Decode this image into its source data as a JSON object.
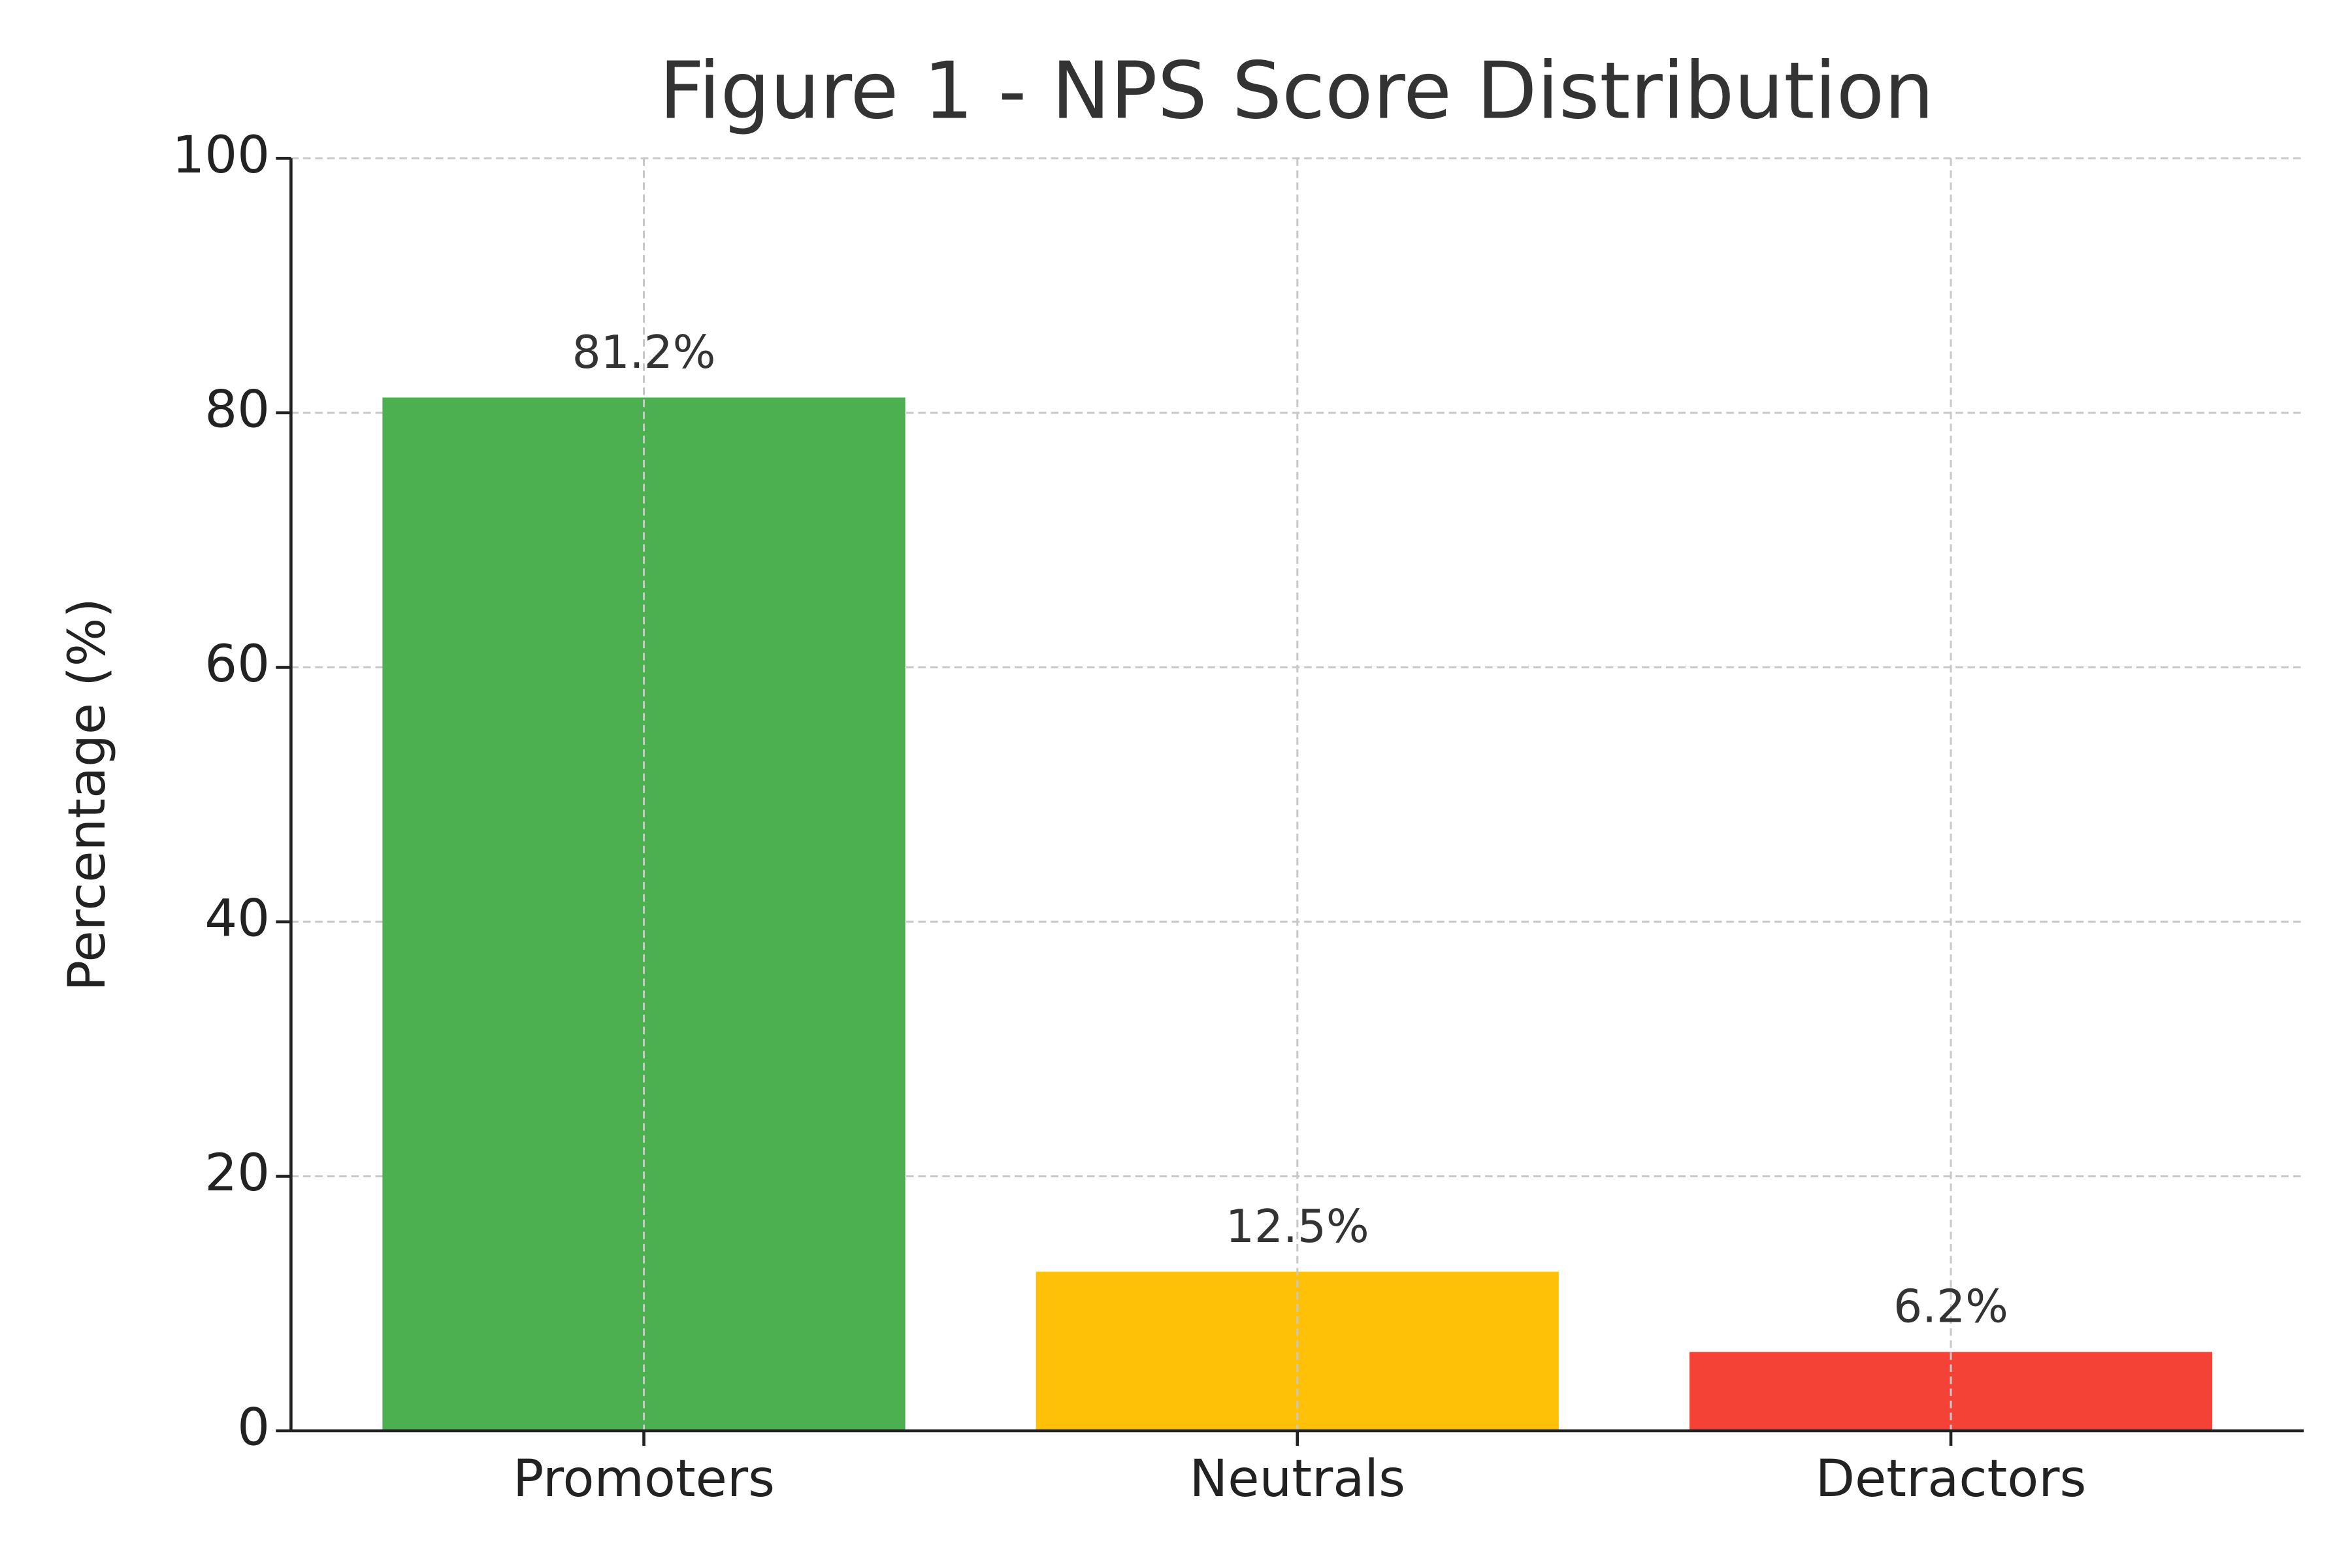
{
  "chart_data": {
    "type": "bar",
    "title": "Figure 1 - NPS Score Distribution",
    "ylabel": "Percentage (%)",
    "categories": [
      "Promoters",
      "Neutrals",
      "Detractors"
    ],
    "values": [
      81.2,
      12.5,
      6.2
    ],
    "value_labels": [
      "81.2%",
      "12.5%",
      "6.2%"
    ],
    "colors": [
      "#4caf50",
      "#ffc107",
      "#f44336"
    ],
    "ylim": [
      0,
      100
    ],
    "yticks": [
      0,
      20,
      40,
      60,
      80,
      100
    ],
    "grid": true
  }
}
